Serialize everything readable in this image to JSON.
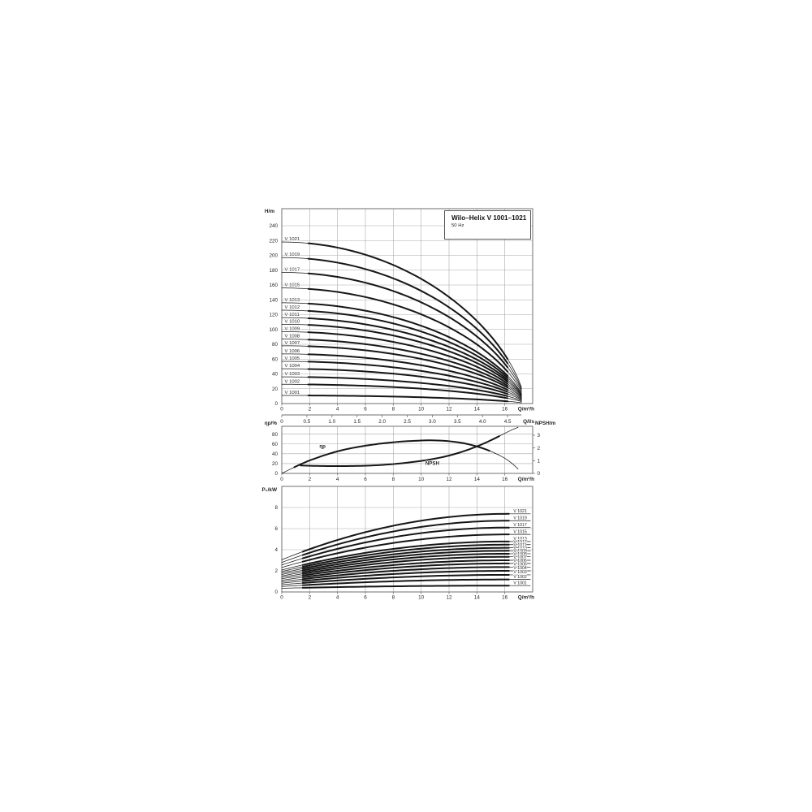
{
  "figure": {
    "title": "Wilo–Helix V 1001–1021",
    "subtitle": "50 Hz"
  },
  "colors": {
    "curve": "#161616",
    "grid": "#a9a9a9",
    "border": "#6f6f6f",
    "text": "#1f1f1f",
    "background": "#ffffff"
  },
  "chart_data": [
    {
      "id": "head_curves",
      "type": "line",
      "title": "Wilo–Helix V 1001–1021",
      "subtitle": "50 Hz",
      "ylabel": "H/m",
      "xlabel": "Q/m³/h",
      "xlabel_secondary": "Q/l/s",
      "xlim": [
        0,
        18
      ],
      "ylim": [
        0,
        263
      ],
      "grid": true,
      "xticks": [
        0,
        2,
        4,
        6,
        8,
        10,
        12,
        14,
        16
      ],
      "yticks": [
        0,
        20,
        40,
        60,
        80,
        100,
        120,
        140,
        160,
        180,
        200,
        220,
        240
      ],
      "x2ticks": [
        "0",
        "0.5",
        "1.0",
        "1.5",
        "2.0",
        "2.5",
        "3.0",
        "3.5",
        "4.0",
        "4.5"
      ],
      "x2_scale_m3h_per_unit": 3.6,
      "curve_model": {
        "q_end": 17.45,
        "q_draw": 17.2,
        "droop_exponent": 0.65,
        "thick_from": 1.9,
        "thick_to": 16.2
      },
      "series": [
        {
          "name": "V 1021",
          "h0": 218
        },
        {
          "name": "V 1019",
          "h0": 197
        },
        {
          "name": "V 1017",
          "h0": 177
        },
        {
          "name": "V 1015",
          "h0": 156
        },
        {
          "name": "V 1013",
          "h0": 136
        },
        {
          "name": "V 1012",
          "h0": 126
        },
        {
          "name": "V 1011",
          "h0": 116
        },
        {
          "name": "V 1010",
          "h0": 107
        },
        {
          "name": "V 1009",
          "h0": 97
        },
        {
          "name": "V 1008",
          "h0": 87
        },
        {
          "name": "V 1007",
          "h0": 78
        },
        {
          "name": "V 1006",
          "h0": 67
        },
        {
          "name": "V 1005",
          "h0": 57
        },
        {
          "name": "V 1004",
          "h0": 47
        },
        {
          "name": "V 1003",
          "h0": 36
        },
        {
          "name": "V 1002",
          "h0": 26
        },
        {
          "name": "V 1001",
          "h0": 11
        }
      ]
    },
    {
      "id": "efficiency_npsh",
      "type": "line",
      "ylabel_left": "ηp/%",
      "ylabel_right": "NPSH/m",
      "xlabel": "Q/m³/h",
      "xlim": [
        0,
        18
      ],
      "ylim_left": [
        0,
        96
      ],
      "ylim_right": [
        0,
        3.7
      ],
      "xticks": [
        0,
        2,
        4,
        6,
        8,
        10,
        12,
        14,
        16
      ],
      "yticks_left": [
        0,
        20,
        40,
        60,
        80
      ],
      "yticks_right": [
        0,
        1,
        2,
        3
      ],
      "series": [
        {
          "name": "ηp",
          "axis": "left",
          "thick_range": [
            0.9,
            14.9
          ],
          "label_at": [
            2.7,
            52
          ],
          "points": [
            [
              0,
              0
            ],
            [
              0.5,
              7
            ],
            [
              1,
              14
            ],
            [
              1.5,
              20.5
            ],
            [
              2,
              26.5
            ],
            [
              2.5,
              31.5
            ],
            [
              3,
              36.5
            ],
            [
              3.5,
              41
            ],
            [
              4,
              45
            ],
            [
              4.5,
              48.5
            ],
            [
              5,
              51.5
            ],
            [
              5.5,
              54
            ],
            [
              6,
              56.5
            ],
            [
              6.5,
              58.5
            ],
            [
              7,
              60.5
            ],
            [
              7.5,
              62
            ],
            [
              8,
              63.5
            ],
            [
              8.5,
              64.7
            ],
            [
              9,
              65.6
            ],
            [
              9.5,
              66.4
            ],
            [
              10,
              67
            ],
            [
              10.5,
              67.4
            ],
            [
              11,
              67.3
            ],
            [
              11.5,
              66.8
            ],
            [
              12,
              65.6
            ],
            [
              12.5,
              64
            ],
            [
              13,
              61.8
            ],
            [
              13.5,
              58.8
            ],
            [
              14,
              55
            ],
            [
              14.5,
              50.5
            ],
            [
              15,
              45
            ],
            [
              15.5,
              38.5
            ],
            [
              16,
              31
            ],
            [
              16.4,
              23
            ],
            [
              16.7,
              16
            ],
            [
              16.95,
              9
            ]
          ]
        },
        {
          "name": "NPSH",
          "axis": "right",
          "thick_range": [
            1.35,
            15.6
          ],
          "label_at": [
            10.3,
            0.66
          ],
          "points": [
            [
              1.35,
              0.62
            ],
            [
              2,
              0.6
            ],
            [
              3,
              0.58
            ],
            [
              4,
              0.57
            ],
            [
              5,
              0.58
            ],
            [
              6,
              0.6
            ],
            [
              7,
              0.65
            ],
            [
              8,
              0.73
            ],
            [
              9,
              0.84
            ],
            [
              10,
              0.98
            ],
            [
              10.5,
              1.06
            ],
            [
              11,
              1.16
            ],
            [
              11.5,
              1.27
            ],
            [
              12,
              1.4
            ],
            [
              12.5,
              1.55
            ],
            [
              13,
              1.72
            ],
            [
              13.5,
              1.91
            ],
            [
              14,
              2.12
            ],
            [
              14.5,
              2.35
            ],
            [
              15,
              2.6
            ],
            [
              15.5,
              2.87
            ],
            [
              16,
              3.15
            ],
            [
              16.5,
              3.42
            ],
            [
              16.95,
              3.62
            ]
          ]
        }
      ]
    },
    {
      "id": "power_curves",
      "type": "line",
      "ylabel": "P₂/kW",
      "xlabel": "Q/m³/h",
      "xlim": [
        0,
        18
      ],
      "ylim": [
        0,
        10
      ],
      "xticks": [
        0,
        2,
        4,
        6,
        8,
        10,
        12,
        14,
        16
      ],
      "yticks": [
        0,
        2,
        4,
        6,
        8
      ],
      "curve_model": {
        "q_end": 16.3,
        "rise_exponent": 2.0,
        "thick_from": 1.5,
        "label_line_from": 16.35,
        "label_line_to": 17.85
      },
      "series": [
        {
          "name": "V 1021",
          "p0": 3.05,
          "pe": 7.4
        },
        {
          "name": "V 1019",
          "p0": 2.8,
          "pe": 6.75
        },
        {
          "name": "V 1017",
          "p0": 2.56,
          "pe": 6.1
        },
        {
          "name": "V 1015",
          "p0": 2.32,
          "pe": 5.45
        },
        {
          "name": "V 1013",
          "p0": 2.08,
          "pe": 4.78
        },
        {
          "name": "V 1012",
          "p0": 1.93,
          "pe": 4.48
        },
        {
          "name": "V 1011",
          "p0": 1.79,
          "pe": 4.18
        },
        {
          "name": "V 1010",
          "p0": 1.65,
          "pe": 3.9
        },
        {
          "name": "V 1009",
          "p0": 1.51,
          "pe": 3.62
        },
        {
          "name": "V 1008",
          "p0": 1.38,
          "pe": 3.33
        },
        {
          "name": "V 1007",
          "p0": 1.25,
          "pe": 3.0
        },
        {
          "name": "V 1006",
          "p0": 1.11,
          "pe": 2.7
        },
        {
          "name": "V 1005",
          "p0": 0.97,
          "pe": 2.36
        },
        {
          "name": "V 1004",
          "p0": 0.83,
          "pe": 2.0
        },
        {
          "name": "V 1003",
          "p0": 0.68,
          "pe": 1.62
        },
        {
          "name": "V 1002",
          "p0": 0.52,
          "pe": 1.18
        },
        {
          "name": "V 1001",
          "p0": 0.35,
          "pe": 0.6
        }
      ]
    }
  ]
}
